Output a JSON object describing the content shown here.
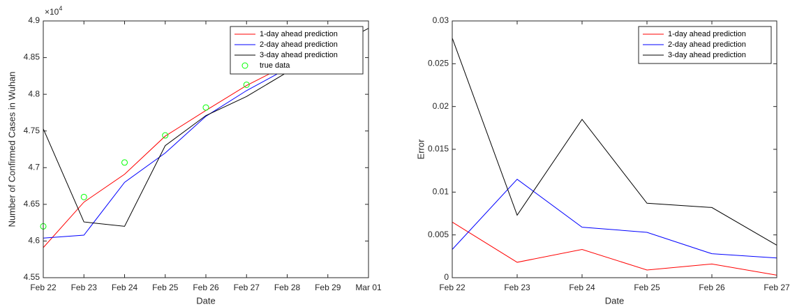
{
  "chart_data": [
    {
      "type": "line",
      "xlabel": "Date",
      "ylabel": "Number of Confirmed Cases in Wuhan",
      "y_multiplier": {
        "base": "×10",
        "exponent": "4"
      },
      "categories": [
        "Feb 22",
        "Feb 23",
        "Feb 24",
        "Feb 25",
        "Feb 26",
        "Feb 27",
        "Feb 28",
        "Feb 29",
        "Mar 01"
      ],
      "ylim": [
        4.55,
        4.9
      ],
      "yticks": [
        4.55,
        4.6,
        4.65,
        4.7,
        4.75,
        4.8,
        4.85,
        4.9
      ],
      "legend": "northeast",
      "series": [
        {
          "name": "1-day ahead prediction",
          "color": "#ff0000",
          "values": [
            4.591,
            4.653,
            4.691,
            4.743,
            4.778,
            4.812,
            4.84,
            null,
            null
          ]
        },
        {
          "name": "2-day ahead prediction",
          "color": "#0000ff",
          "values": [
            4.604,
            4.608,
            4.68,
            4.72,
            4.77,
            4.805,
            4.835,
            null,
            null
          ]
        },
        {
          "name": "3-day ahead prediction",
          "color": "#000000",
          "values": [
            4.753,
            4.626,
            4.62,
            4.73,
            4.771,
            4.797,
            4.83,
            4.86,
            4.89
          ]
        },
        {
          "name": "true data",
          "color": "#00ff00",
          "marker": "o",
          "values": [
            4.62,
            4.66,
            4.707,
            4.744,
            4.782,
            4.813,
            null,
            null,
            null
          ]
        }
      ]
    },
    {
      "type": "line",
      "xlabel": "Date",
      "ylabel": "Error",
      "categories": [
        "Feb 22",
        "Feb 23",
        "Feb 24",
        "Feb 25",
        "Feb 26",
        "Feb 27"
      ],
      "ylim": [
        0,
        0.03
      ],
      "yticks": [
        0,
        0.005,
        0.01,
        0.015,
        0.02,
        0.025,
        0.03
      ],
      "legend": "northeast",
      "series": [
        {
          "name": "1-day ahead prediction",
          "color": "#ff0000",
          "values": [
            0.0065,
            0.0018,
            0.0033,
            0.0009,
            0.0016,
            0.0003
          ]
        },
        {
          "name": "2-day ahead prediction",
          "color": "#0000ff",
          "values": [
            0.0033,
            0.0115,
            0.0059,
            0.0053,
            0.0028,
            0.0023
          ]
        },
        {
          "name": "3-day ahead prediction",
          "color": "#000000",
          "values": [
            0.028,
            0.0073,
            0.0185,
            0.0087,
            0.0082,
            0.0038
          ]
        }
      ]
    }
  ]
}
